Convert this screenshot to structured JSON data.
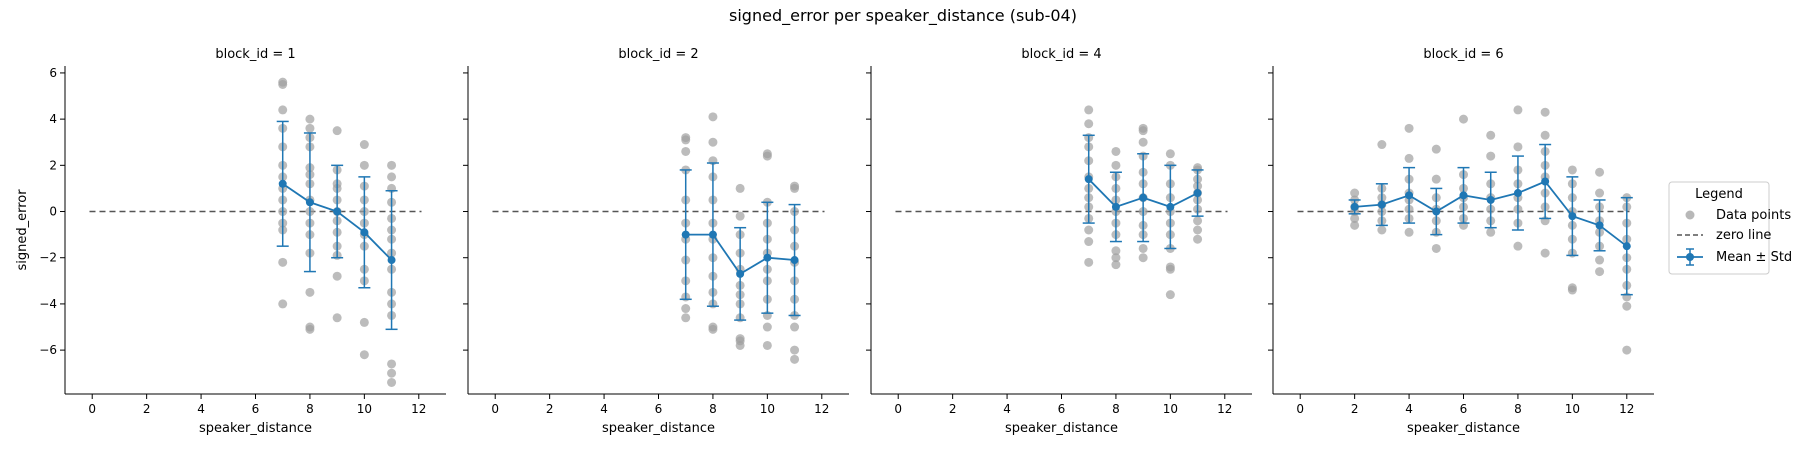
{
  "figure": {
    "title": "signed_error per speaker_distance (sub-04)"
  },
  "legend": {
    "title": "Legend",
    "placement": "center-right",
    "entries": [
      {
        "label": "Data points",
        "marker": "gray-dot"
      },
      {
        "label": "zero line",
        "marker": "dashed-line"
      },
      {
        "label": "Mean ± Std",
        "marker": "errorbar-line"
      }
    ]
  },
  "colors": {
    "mean": "#1f77b4",
    "points": "#a0a0a0",
    "zero_line": "#555555",
    "axis": "#000000"
  },
  "chart_data": [
    {
      "type": "scatter",
      "title": "block_id = 1",
      "xlabel": "speaker_distance",
      "ylabel": "signed_error",
      "xlim": [
        -1,
        13
      ],
      "ylim": [
        -7.9,
        6.3
      ],
      "xticks": [
        0,
        2,
        4,
        6,
        8,
        10,
        12
      ],
      "yticks": [
        -6,
        -4,
        -2,
        0,
        2,
        4,
        6
      ],
      "zero_line": 0,
      "mean_series": {
        "name": "Mean ± Std",
        "x": [
          7,
          8,
          9,
          10,
          11
        ],
        "mean": [
          1.2,
          0.4,
          0.0,
          -0.9,
          -2.1
        ],
        "std": [
          2.7,
          3.0,
          2.0,
          2.4,
          3.0
        ]
      },
      "points": [
        {
          "x": 7,
          "y": [
            5.6,
            5.5,
            4.4,
            3.6,
            2.8,
            2.0,
            1.5,
            1.0,
            0.5,
            0.0,
            -0.5,
            -0.8,
            -2.2,
            -4.0
          ]
        },
        {
          "x": 8,
          "y": [
            4.0,
            3.6,
            3.2,
            2.8,
            1.9,
            1.6,
            1.2,
            0.5,
            0.0,
            -0.5,
            -1.0,
            -1.8,
            -3.5,
            -5.0,
            -5.1
          ]
        },
        {
          "x": 9,
          "y": [
            3.5,
            1.8,
            1.2,
            1.0,
            0.5,
            0.0,
            -0.4,
            -0.9,
            -1.5,
            -1.9,
            -2.8,
            -4.6
          ]
        },
        {
          "x": 10,
          "y": [
            2.9,
            2.0,
            1.1,
            0.5,
            0.0,
            -0.5,
            -1.0,
            -1.5,
            -2.5,
            -3.0,
            -4.8,
            -6.2
          ]
        },
        {
          "x": 11,
          "y": [
            2.0,
            1.5,
            1.0,
            0.4,
            -0.3,
            -0.8,
            -1.2,
            -1.8,
            -2.5,
            -3.5,
            -4.0,
            -4.5,
            -6.6,
            -7.0,
            -7.4
          ]
        }
      ]
    },
    {
      "type": "scatter",
      "title": "block_id = 2",
      "xlabel": "speaker_distance",
      "ylabel": "",
      "xlim": [
        -1,
        13
      ],
      "ylim": [
        -7.9,
        6.3
      ],
      "xticks": [
        0,
        2,
        4,
        6,
        8,
        10,
        12
      ],
      "yticks": [
        -6,
        -4,
        -2,
        0,
        2,
        4,
        6
      ],
      "zero_line": 0,
      "mean_series": {
        "name": "Mean ± Std",
        "x": [
          7,
          8,
          9,
          10,
          11
        ],
        "mean": [
          -1.0,
          -1.0,
          -2.7,
          -2.0,
          -2.1
        ],
        "std": [
          2.8,
          3.1,
          2.0,
          2.4,
          2.4
        ]
      },
      "points": [
        {
          "x": 7,
          "y": [
            3.2,
            3.1,
            2.6,
            1.8,
            0.5,
            -0.5,
            -1.2,
            -2.1,
            -3.0,
            -3.7,
            -4.2,
            -4.6
          ]
        },
        {
          "x": 8,
          "y": [
            4.1,
            3.0,
            2.2,
            1.5,
            0.5,
            -0.5,
            -1.2,
            -2.0,
            -2.8,
            -3.5,
            -4.0,
            -5.0,
            -5.1
          ]
        },
        {
          "x": 9,
          "y": [
            1.0,
            -0.2,
            -1.0,
            -1.8,
            -2.5,
            -3.2,
            -3.6,
            -4.0,
            -4.6,
            -5.5,
            -5.6,
            -5.8
          ]
        },
        {
          "x": 10,
          "y": [
            2.5,
            2.4,
            0.4,
            -0.5,
            -1.2,
            -1.8,
            -2.5,
            -3.0,
            -3.8,
            -4.5,
            -5.0,
            -5.8
          ]
        },
        {
          "x": 11,
          "y": [
            1.1,
            1.0,
            0.0,
            -0.8,
            -1.5,
            -2.2,
            -3.0,
            -3.8,
            -4.5,
            -5.0,
            -6.0,
            -6.4
          ]
        }
      ]
    },
    {
      "type": "scatter",
      "title": "block_id = 4",
      "xlabel": "speaker_distance",
      "ylabel": "",
      "xlim": [
        -1,
        13
      ],
      "ylim": [
        -7.9,
        6.3
      ],
      "xticks": [
        0,
        2,
        4,
        6,
        8,
        10,
        12
      ],
      "yticks": [
        -6,
        -4,
        -2,
        0,
        2,
        4,
        6
      ],
      "zero_line": 0,
      "mean_series": {
        "name": "Mean ± Std",
        "x": [
          7,
          8,
          9,
          10,
          11
        ],
        "mean": [
          1.4,
          0.2,
          0.6,
          0.2,
          0.8
        ],
        "std": [
          1.9,
          1.5,
          1.9,
          1.8,
          1.0
        ]
      },
      "points": [
        {
          "x": 7,
          "y": [
            4.4,
            3.8,
            3.2,
            2.8,
            2.2,
            1.5,
            1.0,
            0.6,
            0.2,
            -0.3,
            -0.8,
            -1.3,
            -2.2
          ]
        },
        {
          "x": 8,
          "y": [
            2.6,
            2.0,
            1.5,
            1.0,
            0.5,
            0.0,
            -0.5,
            -1.0,
            -1.7,
            -2.0,
            -2.3
          ]
        },
        {
          "x": 9,
          "y": [
            3.6,
            3.5,
            3.0,
            2.4,
            1.7,
            1.2,
            0.6,
            0.0,
            -0.6,
            -1.0,
            -1.6,
            -2.0
          ]
        },
        {
          "x": 10,
          "y": [
            2.5,
            2.0,
            1.2,
            0.6,
            0.0,
            -0.5,
            -1.0,
            -1.6,
            -2.4,
            -2.5,
            -3.6
          ]
        },
        {
          "x": 11,
          "y": [
            1.9,
            1.8,
            1.4,
            1.1,
            0.8,
            0.5,
            0.1,
            -0.4,
            -0.8,
            -1.2
          ]
        }
      ]
    },
    {
      "type": "scatter",
      "title": "block_id = 6",
      "xlabel": "speaker_distance",
      "ylabel": "",
      "xlim": [
        -1,
        13
      ],
      "ylim": [
        -7.9,
        6.3
      ],
      "xticks": [
        0,
        2,
        4,
        6,
        8,
        10,
        12
      ],
      "yticks": [
        -6,
        -4,
        -2,
        0,
        2,
        4,
        6
      ],
      "zero_line": 0,
      "mean_series": {
        "name": "Mean ± Std",
        "x": [
          2,
          3,
          4,
          5,
          6,
          7,
          8,
          9,
          10,
          11,
          12
        ],
        "mean": [
          0.2,
          0.3,
          0.7,
          0.0,
          0.7,
          0.5,
          0.8,
          1.3,
          -0.2,
          -0.6,
          -1.5
        ],
        "std": [
          0.3,
          0.9,
          1.2,
          1.0,
          1.2,
          1.2,
          1.6,
          1.6,
          1.7,
          1.1,
          2.1
        ]
      },
      "points": [
        {
          "x": 2,
          "y": [
            0.8,
            0.5,
            0.2,
            0.0,
            -0.3,
            -0.6
          ]
        },
        {
          "x": 3,
          "y": [
            2.9,
            1.0,
            0.6,
            0.3,
            0.0,
            -0.4,
            -0.8
          ]
        },
        {
          "x": 4,
          "y": [
            3.6,
            2.3,
            1.4,
            0.8,
            0.5,
            0.1,
            -0.3,
            -0.9
          ]
        },
        {
          "x": 5,
          "y": [
            2.7,
            1.4,
            0.6,
            0.1,
            -0.4,
            -0.9,
            -1.6
          ]
        },
        {
          "x": 6,
          "y": [
            4.0,
            1.6,
            1.0,
            0.6,
            0.2,
            -0.3,
            -0.6
          ]
        },
        {
          "x": 7,
          "y": [
            3.3,
            2.4,
            1.2,
            0.6,
            0.1,
            -0.4,
            -0.9
          ]
        },
        {
          "x": 8,
          "y": [
            4.4,
            2.8,
            1.8,
            1.2,
            0.6,
            0.1,
            -0.5,
            -1.5
          ]
        },
        {
          "x": 9,
          "y": [
            4.3,
            3.3,
            2.6,
            2.0,
            1.5,
            0.8,
            0.2,
            -0.4,
            -1.8
          ]
        },
        {
          "x": 10,
          "y": [
            1.8,
            1.2,
            0.6,
            0.0,
            -0.6,
            -1.2,
            -1.8,
            -3.3,
            -3.4
          ]
        },
        {
          "x": 11,
          "y": [
            1.7,
            0.8,
            0.2,
            -0.4,
            -0.9,
            -1.5,
            -2.1,
            -2.6
          ]
        },
        {
          "x": 12,
          "y": [
            0.6,
            0.2,
            -0.5,
            -1.2,
            -2.0,
            -2.5,
            -3.2,
            -3.7,
            -4.1,
            -6.0
          ]
        }
      ]
    }
  ]
}
